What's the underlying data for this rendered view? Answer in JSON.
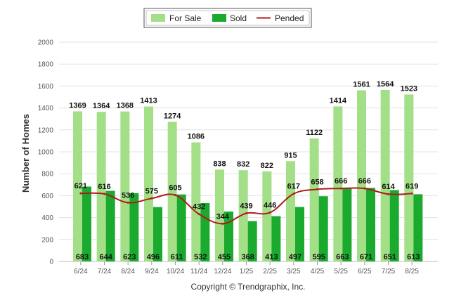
{
  "chart_data": {
    "type": "bar",
    "categories": [
      "6/24",
      "7/24",
      "8/24",
      "9/24",
      "10/24",
      "11/24",
      "12/24",
      "1/25",
      "2/25",
      "3/25",
      "4/25",
      "5/25",
      "6/25",
      "7/25",
      "8/25"
    ],
    "series": [
      {
        "name": "For Sale",
        "kind": "bar",
        "color": "#a3df87",
        "values": [
          1369,
          1364,
          1368,
          1413,
          1274,
          1086,
          838,
          832,
          822,
          915,
          1122,
          1414,
          1561,
          1564,
          1523
        ]
      },
      {
        "name": "Sold",
        "kind": "bar",
        "color": "#1aab2e",
        "values": [
          683,
          644,
          623,
          496,
          611,
          532,
          455,
          368,
          413,
          497,
          595,
          663,
          671,
          651,
          613
        ]
      },
      {
        "name": "Pended",
        "kind": "line",
        "color": "#b01a1a",
        "values": [
          621,
          616,
          536,
          575,
          605,
          432,
          344,
          439,
          446,
          617,
          658,
          666,
          666,
          614,
          619
        ]
      }
    ],
    "ylabel": "Number of Homes",
    "xlabel": "",
    "ylim": [
      0,
      2000
    ],
    "yticks": [
      0,
      200,
      400,
      600,
      800,
      1000,
      1200,
      1400,
      1600,
      1800,
      2000
    ],
    "grid": true,
    "legend_position": "top-center",
    "credit": "Copyright © Trendgraphix, Inc."
  }
}
